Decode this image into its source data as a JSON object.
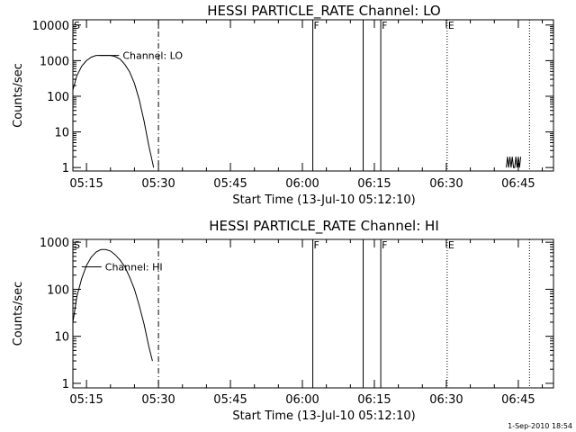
{
  "footer_stamp": "1-Sep-2010 18:54",
  "chart_data": [
    {
      "type": "line",
      "title": "HESSI PARTICLE_RATE Channel: LO",
      "xlabel": "Start Time (13-Jul-10 05:12:10)",
      "ylabel": "Counts/sec",
      "y_scale": "log",
      "ylim": [
        0.8,
        14000
      ],
      "xlim": [
        "05:12:10",
        "06:52:20"
      ],
      "x_ticks": [
        "05:15",
        "05:30",
        "05:45",
        "06:00",
        "06:15",
        "06:30",
        "06:45"
      ],
      "y_ticks": [
        "1",
        "10",
        "100",
        "1000",
        "10000"
      ],
      "legend": "Channel: LO",
      "flags": [
        {
          "label": "S",
          "time": "05:12:10"
        },
        {
          "label": "F",
          "time": "06:02:10"
        },
        {
          "label": "F",
          "time": "06:16:20"
        },
        {
          "label": "E",
          "time": "06:30:10"
        }
      ],
      "vlines": [
        {
          "time": "05:30:00",
          "style": "dash-dot"
        },
        {
          "time": "06:02:10",
          "style": "solid"
        },
        {
          "time": "06:12:40",
          "style": "solid"
        },
        {
          "time": "06:16:20",
          "style": "solid"
        },
        {
          "time": "06:30:10",
          "style": "dotted"
        },
        {
          "time": "06:47:20",
          "style": "dotted"
        }
      ],
      "series": [
        {
          "name": "Channel: LO",
          "x": [
            "05:12:10",
            "05:13:00",
            "05:14:00",
            "05:15:00",
            "05:16:00",
            "05:17:00",
            "05:18:00",
            "05:19:00",
            "05:20:00",
            "05:21:00",
            "05:22:00",
            "05:23:00",
            "05:24:00",
            "05:25:00",
            "05:26:00",
            "05:27:00",
            "05:28:00",
            "05:28:30",
            "05:29:00"
          ],
          "values": [
            150,
            380,
            700,
            1000,
            1250,
            1400,
            1400,
            1400,
            1400,
            1300,
            1100,
            780,
            480,
            230,
            80,
            20,
            4,
            2,
            1
          ]
        },
        {
          "name": "",
          "x": [
            "06:42:30",
            "06:42:45",
            "06:43:00",
            "06:43:15",
            "06:43:30",
            "06:43:45",
            "06:44:00",
            "06:44:15",
            "06:44:30",
            "06:44:45",
            "06:45:00",
            "06:45:15",
            "06:45:30"
          ],
          "values": [
            1,
            2,
            1,
            2,
            1,
            2,
            1,
            1,
            2,
            1,
            2,
            1,
            2
          ]
        }
      ]
    },
    {
      "type": "line",
      "title": "HESSI PARTICLE_RATE Channel: HI",
      "xlabel": "Start Time (13-Jul-10 05:12:10)",
      "ylabel": "Counts/sec",
      "y_scale": "log",
      "ylim": [
        0.8,
        1150
      ],
      "xlim": [
        "05:12:10",
        "06:52:20"
      ],
      "x_ticks": [
        "05:15",
        "05:30",
        "05:45",
        "06:00",
        "06:15",
        "06:30",
        "06:45"
      ],
      "y_ticks": [
        "1",
        "10",
        "100",
        "1000"
      ],
      "legend": "Channel: HI",
      "flags": [
        {
          "label": "S",
          "time": "05:12:10"
        },
        {
          "label": "F",
          "time": "06:02:10"
        },
        {
          "label": "F",
          "time": "06:16:20"
        },
        {
          "label": "E",
          "time": "06:30:10"
        }
      ],
      "vlines": [
        {
          "time": "05:30:00",
          "style": "dash-dot"
        },
        {
          "time": "06:02:10",
          "style": "solid"
        },
        {
          "time": "06:12:40",
          "style": "solid"
        },
        {
          "time": "06:16:20",
          "style": "solid"
        },
        {
          "time": "06:30:10",
          "style": "dotted"
        },
        {
          "time": "06:47:20",
          "style": "dotted"
        }
      ],
      "series": [
        {
          "name": "Channel: HI",
          "x": [
            "05:12:10",
            "05:13:00",
            "05:14:00",
            "05:15:00",
            "05:16:00",
            "05:17:00",
            "05:18:00",
            "05:19:00",
            "05:20:00",
            "05:21:00",
            "05:22:00",
            "05:23:00",
            "05:24:00",
            "05:25:00",
            "05:26:00",
            "05:27:00",
            "05:28:00",
            "05:28:45"
          ],
          "values": [
            20,
            70,
            170,
            320,
            480,
            620,
            700,
            700,
            650,
            540,
            420,
            300,
            180,
            100,
            45,
            18,
            6,
            3
          ]
        }
      ]
    }
  ]
}
